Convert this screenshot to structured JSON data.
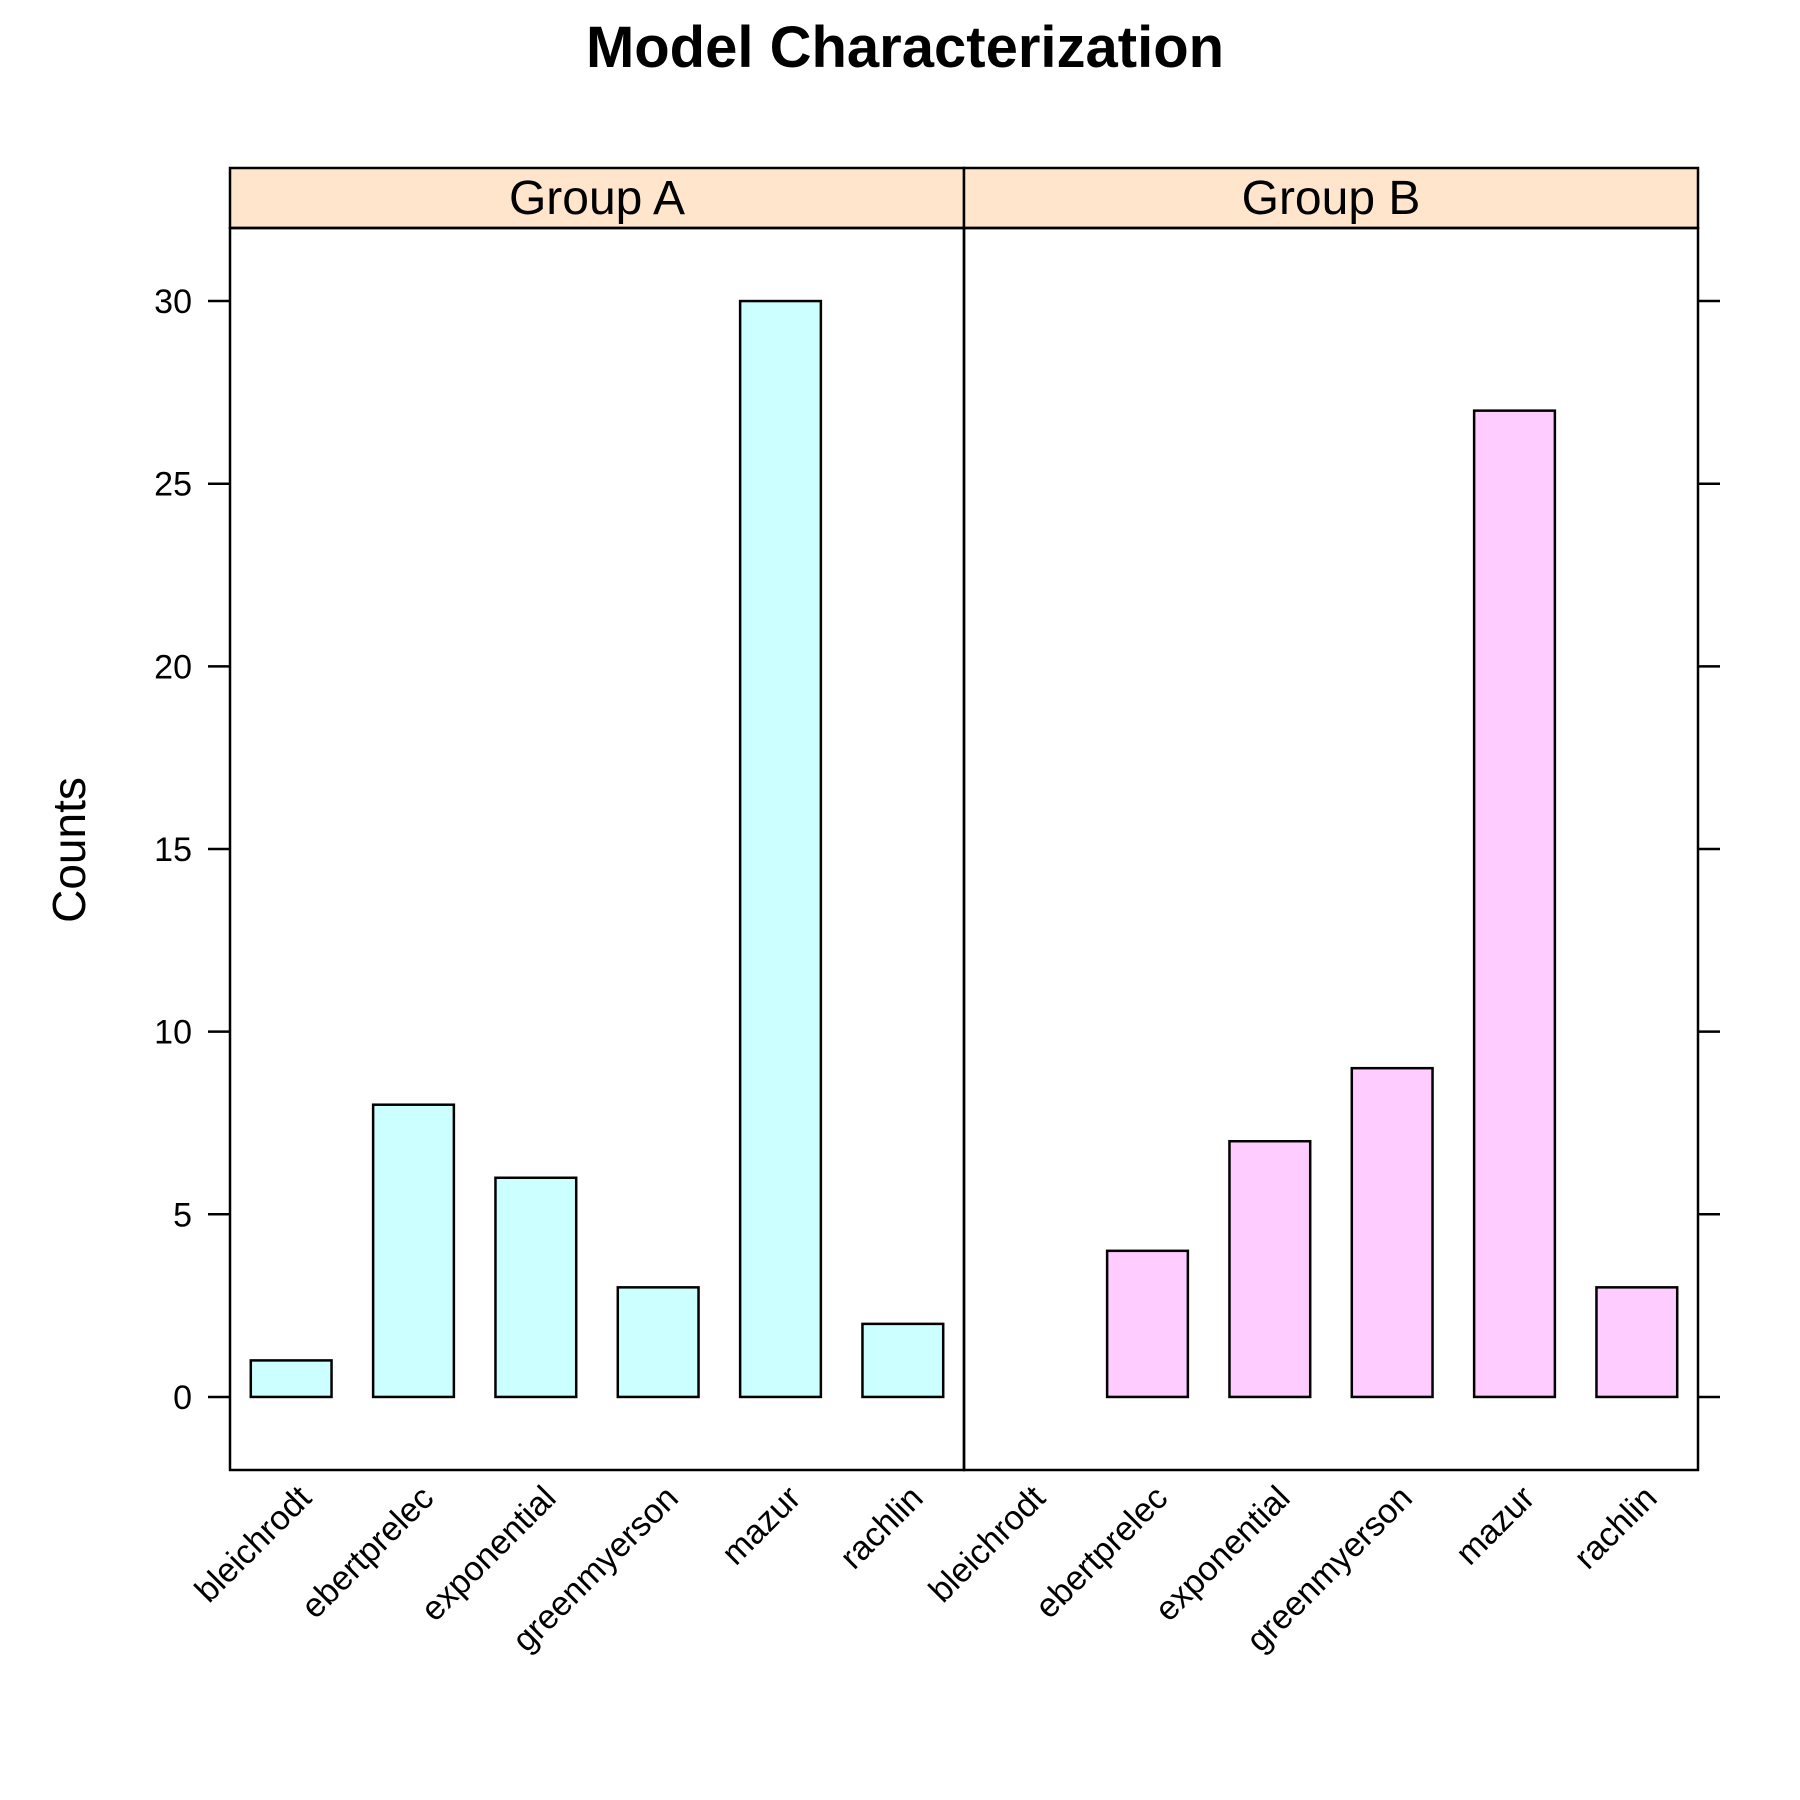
{
  "chart_data": {
    "type": "bar",
    "title": "Model Characterization",
    "ylabel": "Counts",
    "xlabel": "",
    "ylim": [
      -2,
      32
    ],
    "yticks": [
      0,
      5,
      10,
      15,
      20,
      25,
      30
    ],
    "categories": [
      "bleichrodt",
      "ebertprelec",
      "exponential",
      "greenmyerson",
      "mazur",
      "rachlin"
    ],
    "strip_color": "#ffe5cc",
    "panels": [
      {
        "name": "Group A",
        "color": "#ccffff",
        "values": [
          1,
          8,
          6,
          3,
          30,
          2
        ]
      },
      {
        "name": "Group B",
        "color": "#ffccff",
        "values": [
          0,
          4,
          7,
          9,
          27,
          3
        ]
      }
    ]
  }
}
